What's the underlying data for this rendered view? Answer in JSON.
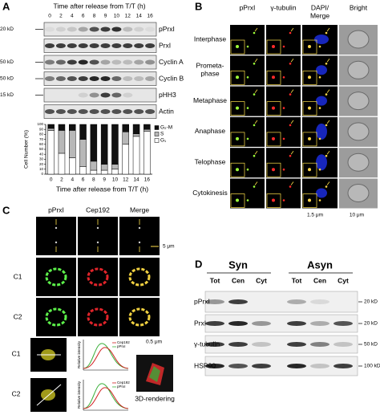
{
  "panel_a": {
    "label": "A",
    "header": "Time after release from T/T (h)",
    "times": [
      "0",
      "2",
      "4",
      "6",
      "8",
      "9",
      "10",
      "12",
      "14",
      "16"
    ],
    "blots": [
      {
        "name": "pPrxI",
        "marker": "20 kD"
      },
      {
        "name": "PrxI"
      },
      {
        "name": "Cyclin A",
        "marker": "50 kD"
      },
      {
        "name": "Cyclin B",
        "marker": "50 kD"
      },
      {
        "name": "pHH3",
        "marker": "15 kD"
      },
      {
        "name": "Actin"
      }
    ]
  },
  "chart_data": {
    "type": "bar",
    "stacked": true,
    "categories": [
      "0",
      "2",
      "4",
      "6",
      "8",
      "9",
      "10",
      "12",
      "14",
      "16"
    ],
    "series": [
      {
        "name": "G₁",
        "color": "#ffffff",
        "values": [
          88,
          42,
          33,
          15,
          8,
          8,
          10,
          60,
          76,
          86
        ]
      },
      {
        "name": "S",
        "color": "#b8b8b8",
        "values": [
          4,
          46,
          55,
          55,
          18,
          12,
          10,
          25,
          5,
          4
        ]
      },
      {
        "name": "G₂-M",
        "color": "#111111",
        "values": [
          8,
          12,
          12,
          30,
          74,
          80,
          80,
          15,
          19,
          10
        ]
      }
    ],
    "ylim": [
      0,
      100
    ],
    "yticks": [
      0,
      10,
      20,
      30,
      40,
      50,
      60,
      70,
      80,
      90,
      100
    ],
    "ylabel": "Cell Number (%)",
    "xlabel": "Time after release from T/T (h)",
    "legend": "top-right"
  },
  "panel_b": {
    "label": "B",
    "columns": [
      [
        "pPrxI"
      ],
      [
        "γ-tubulin"
      ],
      [
        "DAPI/",
        "Merge"
      ],
      [
        "Bright"
      ]
    ],
    "rows": [
      [
        "Interphase"
      ],
      [
        "Prometa-",
        "phase"
      ],
      [
        "Metaphase"
      ],
      [
        "Anaphase"
      ],
      [
        "Telophase"
      ],
      [
        "Cytokinesis"
      ]
    ],
    "scales": [
      "1.5 μm",
      "10 μm"
    ]
  },
  "panel_c": {
    "label": "C",
    "columns": [
      "pPrxI",
      "Cep192",
      "Merge"
    ],
    "rows": [
      "C1",
      "C2"
    ],
    "scales": [
      "5 μm",
      "0.5 μm"
    ],
    "plot_ylabel": "Relative intensity",
    "plot_legend": [
      "Cep192",
      "pPrxI"
    ],
    "rendering": "3D-rendering"
  },
  "panel_d": {
    "label": "D",
    "groups": [
      "Syn",
      "Asyn"
    ],
    "lanes": [
      "Tot",
      "Cen",
      "Cyt"
    ],
    "blots": [
      {
        "name": "pPrxI",
        "marker": "20 kD"
      },
      {
        "name": "PrxI",
        "marker": "20 kD"
      },
      {
        "name": "γ-tubulin",
        "marker": "50 kD"
      },
      {
        "name": "HSP90",
        "marker": "100 kD"
      }
    ]
  }
}
